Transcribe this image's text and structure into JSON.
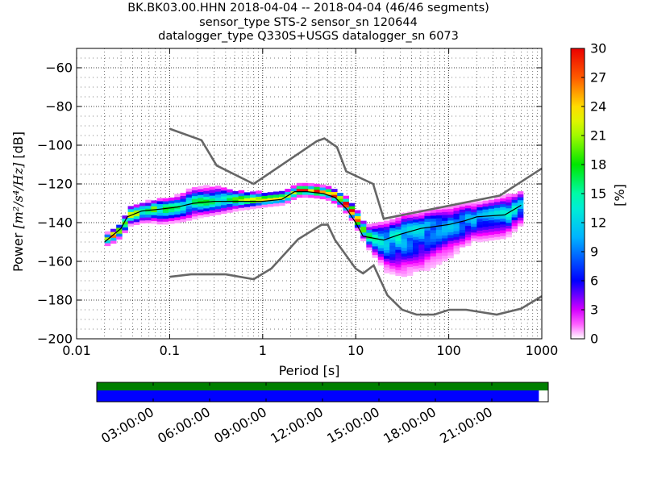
{
  "title": {
    "line1": "BK.BK03.00.HHN   2018-04-04 -- 2018-04-04  (46/46 segments)",
    "line2": "sensor_type STS-2 sensor_sn 120644",
    "line3": "datalogger_type Q330S+USGS datalogger_sn 6073"
  },
  "colors": {
    "model_curves": "#666666",
    "mode_line": "#000000",
    "coverage_green": "#007f00",
    "coverage_blue": "#0000ff"
  },
  "chart_data": {
    "type": "heatmap",
    "xlabel": "Period [s]",
    "ylabel_prefix": "Power ",
    "ylabel_math": "[m²/s⁴/Hz]",
    "ylabel_suffix": " [dB]",
    "x_scale": "log",
    "xlim": [
      0.01,
      1000
    ],
    "ylim": [
      -200,
      -50
    ],
    "grid": true,
    "x_ticks": [
      {
        "value": 0.01,
        "label": "0.01"
      },
      {
        "value": 0.1,
        "label": "0.1"
      },
      {
        "value": 1,
        "label": "1"
      },
      {
        "value": 10,
        "label": "10"
      },
      {
        "value": 100,
        "label": "100"
      },
      {
        "value": 1000,
        "label": "1000"
      }
    ],
    "y_ticks": [
      {
        "value": -60,
        "label": "−60"
      },
      {
        "value": -80,
        "label": "−80"
      },
      {
        "value": -100,
        "label": "−100"
      },
      {
        "value": -120,
        "label": "−120"
      },
      {
        "value": -140,
        "label": "−140"
      },
      {
        "value": -160,
        "label": "−160"
      },
      {
        "value": -180,
        "label": "−180"
      },
      {
        "value": -200,
        "label": "−200"
      }
    ],
    "colorbar": {
      "label": "[%]",
      "range": [
        0,
        30
      ],
      "ticks": [
        {
          "value": 0,
          "label": "0"
        },
        {
          "value": 3,
          "label": "3"
        },
        {
          "value": 6,
          "label": "6"
        },
        {
          "value": 9,
          "label": "9"
        },
        {
          "value": 12,
          "label": "12"
        },
        {
          "value": 15,
          "label": "15"
        },
        {
          "value": 18,
          "label": "18"
        },
        {
          "value": 21,
          "label": "21"
        },
        {
          "value": 24,
          "label": "24"
        },
        {
          "value": 27,
          "label": "27"
        },
        {
          "value": 30,
          "label": "30"
        }
      ]
    },
    "high_noise_model": [
      [
        0.1,
        -91.5
      ],
      [
        0.22,
        -97.4
      ],
      [
        0.32,
        -110.5
      ],
      [
        0.8,
        -120
      ],
      [
        3.8,
        -98
      ],
      [
        4.6,
        -96.5
      ],
      [
        6.3,
        -101
      ],
      [
        7.9,
        -113.5
      ],
      [
        15.4,
        -120
      ],
      [
        20,
        -138
      ],
      [
        354.8,
        -126
      ],
      [
        1000,
        -112
      ]
    ],
    "low_noise_model": [
      [
        0.1,
        -168
      ],
      [
        0.17,
        -166.7
      ],
      [
        0.4,
        -166.7
      ],
      [
        0.8,
        -169.2
      ],
      [
        1.24,
        -163.7
      ],
      [
        2.4,
        -148.6
      ],
      [
        4.3,
        -141.1
      ],
      [
        5,
        -141.1
      ],
      [
        6,
        -149
      ],
      [
        10,
        -163.8
      ],
      [
        12,
        -166.2
      ],
      [
        15.6,
        -162.1
      ],
      [
        21.9,
        -177.5
      ],
      [
        31.6,
        -185
      ],
      [
        45,
        -187.5
      ],
      [
        70,
        -187.5
      ],
      [
        101,
        -185
      ],
      [
        154,
        -185
      ],
      [
        328,
        -187.5
      ],
      [
        600,
        -184.4
      ],
      [
        1000,
        -178
      ]
    ],
    "mode_line": [
      [
        0.02,
        -150
      ],
      [
        0.03,
        -143
      ],
      [
        0.035,
        -137
      ],
      [
        0.05,
        -134
      ],
      [
        0.08,
        -133
      ],
      [
        0.12,
        -132
      ],
      [
        0.18,
        -130
      ],
      [
        0.3,
        -129
      ],
      [
        0.5,
        -129
      ],
      [
        1,
        -129
      ],
      [
        1.6,
        -128
      ],
      [
        2.2,
        -124
      ],
      [
        3,
        -124
      ],
      [
        4.5,
        -125
      ],
      [
        6,
        -127
      ],
      [
        8,
        -133
      ],
      [
        10,
        -140
      ],
      [
        12,
        -147
      ],
      [
        20,
        -149
      ],
      [
        30,
        -146
      ],
      [
        50,
        -143
      ],
      [
        100,
        -141
      ],
      [
        150,
        -139
      ],
      [
        200,
        -137
      ],
      [
        400,
        -136
      ],
      [
        600,
        -131
      ]
    ],
    "psd_density": [
      {
        "period": 0.02,
        "low": -152,
        "high": -146,
        "peak": -149,
        "max_pct": 22
      },
      {
        "period": 0.025,
        "low": -150,
        "high": -143,
        "peak": -146,
        "max_pct": 24
      },
      {
        "period": 0.03,
        "low": -146,
        "high": -138,
        "peak": -142,
        "max_pct": 24
      },
      {
        "period": 0.035,
        "low": -142,
        "high": -132,
        "peak": -137,
        "max_pct": 20
      },
      {
        "period": 0.05,
        "low": -140,
        "high": -130,
        "peak": -134,
        "max_pct": 18
      },
      {
        "period": 0.08,
        "low": -141,
        "high": -128,
        "peak": -133,
        "max_pct": 16
      },
      {
        "period": 0.12,
        "low": -140,
        "high": -126,
        "peak": -132,
        "max_pct": 14
      },
      {
        "period": 0.18,
        "low": -138,
        "high": -122,
        "peak": -130,
        "max_pct": 14
      },
      {
        "period": 0.3,
        "low": -136,
        "high": -122,
        "peak": -129,
        "max_pct": 16
      },
      {
        "period": 0.5,
        "low": -134,
        "high": -124,
        "peak": -129,
        "max_pct": 18
      },
      {
        "period": 1,
        "low": -132,
        "high": -125,
        "peak": -129,
        "max_pct": 20
      },
      {
        "period": 1.6,
        "low": -131,
        "high": -124,
        "peak": -128,
        "max_pct": 20
      },
      {
        "period": 2.2,
        "low": -127,
        "high": -121,
        "peak": -124,
        "max_pct": 26
      },
      {
        "period": 3,
        "low": -127,
        "high": -121,
        "peak": -124,
        "max_pct": 28
      },
      {
        "period": 4.5,
        "low": -128,
        "high": -122,
        "peak": -125,
        "max_pct": 28
      },
      {
        "period": 6,
        "low": -131,
        "high": -124,
        "peak": -127,
        "max_pct": 28
      },
      {
        "period": 8,
        "low": -137,
        "high": -129,
        "peak": -133,
        "max_pct": 26
      },
      {
        "period": 10,
        "low": -145,
        "high": -135,
        "peak": -140,
        "max_pct": 22
      },
      {
        "period": 12,
        "low": -152,
        "high": -142,
        "peak": -147,
        "max_pct": 16
      },
      {
        "period": 20,
        "low": -166,
        "high": -140,
        "peak": -149,
        "max_pct": 12
      },
      {
        "period": 30,
        "low": -168,
        "high": -136,
        "peak": -146,
        "max_pct": 12
      },
      {
        "period": 50,
        "low": -166,
        "high": -134,
        "peak": -143,
        "max_pct": 10
      },
      {
        "period": 100,
        "low": -158,
        "high": -132,
        "peak": -141,
        "max_pct": 10
      },
      {
        "period": 150,
        "low": -152,
        "high": -130,
        "peak": -139,
        "max_pct": 10
      },
      {
        "period": 200,
        "low": -150,
        "high": -130,
        "peak": -137,
        "max_pct": 10
      },
      {
        "period": 400,
        "low": -148,
        "high": -126,
        "peak": -136,
        "max_pct": 12
      },
      {
        "period": 600,
        "low": -140,
        "high": -124,
        "peak": -131,
        "max_pct": 12
      }
    ],
    "coverage": {
      "time_ticks": [
        "03:00:00",
        "06:00:00",
        "09:00:00",
        "12:00:00",
        "15:00:00",
        "18:00:00",
        "21:00:00"
      ],
      "time_tick_hours": [
        3,
        6,
        9,
        12,
        15,
        18,
        21
      ],
      "range_hours": [
        0,
        24
      ],
      "data_hours": [
        0,
        23.5
      ],
      "psd_hours": [
        0,
        24
      ]
    }
  }
}
